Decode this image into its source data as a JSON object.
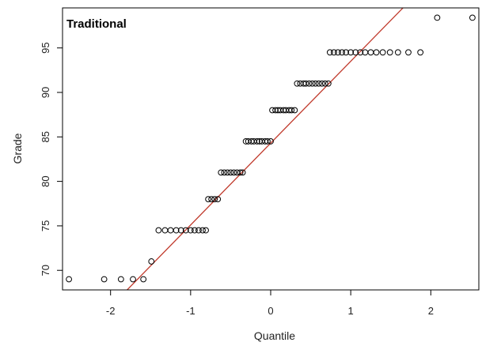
{
  "chart_data": {
    "type": "scatter",
    "title": "Traditional",
    "xlabel": "Quantile",
    "ylabel": "Grade",
    "xlim": [
      -2.6,
      2.6
    ],
    "ylim": [
      67.8,
      99.5
    ],
    "xticks": [
      -2,
      -1,
      0,
      1,
      2
    ],
    "xtick_labels": [
      "-2",
      "-1",
      "0",
      "1",
      "2"
    ],
    "yticks": [
      70,
      75,
      80,
      85,
      90,
      95
    ],
    "ytick_labels": [
      "70",
      "75",
      "80",
      "85",
      "90",
      "95"
    ],
    "grid": false,
    "colors": {
      "points": "#000000",
      "reference_line": "#c0392b",
      "axis": "#000000"
    },
    "reference_line": {
      "slope": 9.2,
      "intercept": 84.3
    },
    "points": [
      {
        "x": -2.52,
        "y": 69.0
      },
      {
        "x": -2.08,
        "y": 69.0
      },
      {
        "x": -1.87,
        "y": 69.0
      },
      {
        "x": -1.72,
        "y": 69.0
      },
      {
        "x": -1.59,
        "y": 69.0
      },
      {
        "x": -1.49,
        "y": 71.0
      },
      {
        "x": -1.4,
        "y": 74.5
      },
      {
        "x": -1.32,
        "y": 74.5
      },
      {
        "x": -1.25,
        "y": 74.5
      },
      {
        "x": -1.18,
        "y": 74.5
      },
      {
        "x": -1.12,
        "y": 74.5
      },
      {
        "x": -1.06,
        "y": 74.5
      },
      {
        "x": -1.0,
        "y": 74.5
      },
      {
        "x": -0.95,
        "y": 74.5
      },
      {
        "x": -0.9,
        "y": 74.5
      },
      {
        "x": -0.85,
        "y": 74.5
      },
      {
        "x": -0.81,
        "y": 74.5
      },
      {
        "x": -0.78,
        "y": 78.0
      },
      {
        "x": -0.74,
        "y": 78.0
      },
      {
        "x": -0.7,
        "y": 78.0
      },
      {
        "x": -0.66,
        "y": 78.0
      },
      {
        "x": -0.62,
        "y": 81.0
      },
      {
        "x": -0.58,
        "y": 81.0
      },
      {
        "x": -0.54,
        "y": 81.0
      },
      {
        "x": -0.5,
        "y": 81.0
      },
      {
        "x": -0.46,
        "y": 81.0
      },
      {
        "x": -0.42,
        "y": 81.0
      },
      {
        "x": -0.38,
        "y": 81.0
      },
      {
        "x": -0.35,
        "y": 81.0
      },
      {
        "x": -0.31,
        "y": 84.5
      },
      {
        "x": -0.28,
        "y": 84.5
      },
      {
        "x": -0.24,
        "y": 84.5
      },
      {
        "x": -0.21,
        "y": 84.5
      },
      {
        "x": -0.17,
        "y": 84.5
      },
      {
        "x": -0.14,
        "y": 84.5
      },
      {
        "x": -0.11,
        "y": 84.5
      },
      {
        "x": -0.07,
        "y": 84.5
      },
      {
        "x": -0.04,
        "y": 84.5
      },
      {
        "x": 0.0,
        "y": 84.5
      },
      {
        "x": 0.02,
        "y": 88.0
      },
      {
        "x": 0.06,
        "y": 88.0
      },
      {
        "x": 0.09,
        "y": 88.0
      },
      {
        "x": 0.12,
        "y": 88.0
      },
      {
        "x": 0.16,
        "y": 88.0
      },
      {
        "x": 0.19,
        "y": 88.0
      },
      {
        "x": 0.23,
        "y": 88.0
      },
      {
        "x": 0.26,
        "y": 88.0
      },
      {
        "x": 0.3,
        "y": 88.0
      },
      {
        "x": 0.33,
        "y": 91.0
      },
      {
        "x": 0.37,
        "y": 91.0
      },
      {
        "x": 0.41,
        "y": 91.0
      },
      {
        "x": 0.44,
        "y": 91.0
      },
      {
        "x": 0.48,
        "y": 91.0
      },
      {
        "x": 0.52,
        "y": 91.0
      },
      {
        "x": 0.56,
        "y": 91.0
      },
      {
        "x": 0.6,
        "y": 91.0
      },
      {
        "x": 0.64,
        "y": 91.0
      },
      {
        "x": 0.68,
        "y": 91.0
      },
      {
        "x": 0.72,
        "y": 91.0
      },
      {
        "x": 0.74,
        "y": 94.5
      },
      {
        "x": 0.79,
        "y": 94.5
      },
      {
        "x": 0.84,
        "y": 94.5
      },
      {
        "x": 0.89,
        "y": 94.5
      },
      {
        "x": 0.94,
        "y": 94.5
      },
      {
        "x": 1.0,
        "y": 94.5
      },
      {
        "x": 1.06,
        "y": 94.5
      },
      {
        "x": 1.12,
        "y": 94.5
      },
      {
        "x": 1.18,
        "y": 94.5
      },
      {
        "x": 1.25,
        "y": 94.5
      },
      {
        "x": 1.32,
        "y": 94.5
      },
      {
        "x": 1.4,
        "y": 94.5
      },
      {
        "x": 1.49,
        "y": 94.5
      },
      {
        "x": 1.59,
        "y": 94.5
      },
      {
        "x": 1.72,
        "y": 94.5
      },
      {
        "x": 1.87,
        "y": 94.5
      },
      {
        "x": 2.08,
        "y": 98.4
      },
      {
        "x": 2.52,
        "y": 98.4
      }
    ]
  }
}
